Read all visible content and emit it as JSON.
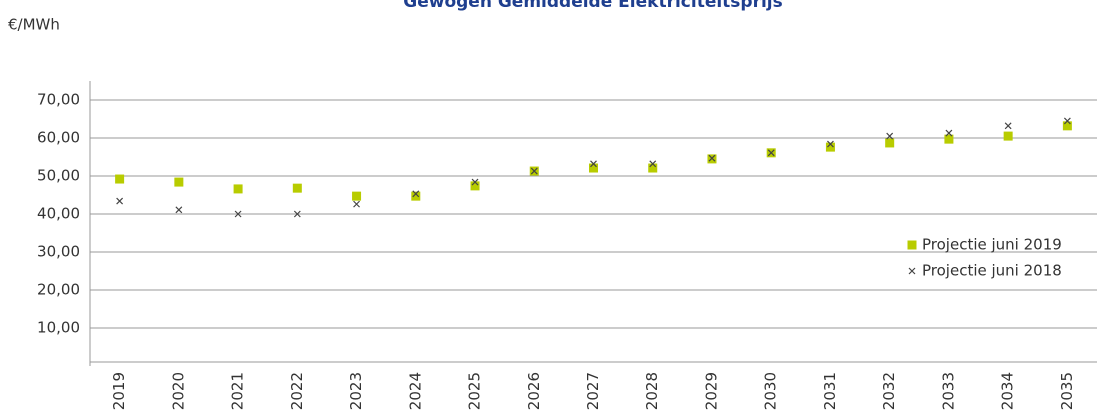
{
  "chart_data": {
    "type": "scatter",
    "title": "Gewogen Gemiddelde Elektriciteitsprijs",
    "y_label": "€/MWh",
    "categories": [
      "2019",
      "2020",
      "2021",
      "2022",
      "2023",
      "2024",
      "2025",
      "2026",
      "2027",
      "2028",
      "2029",
      "2030",
      "2031",
      "2032",
      "2033",
      "2034",
      "2035"
    ],
    "series": [
      {
        "name": "Projectie juni 2019",
        "color": "#b8cc00",
        "marker": "square",
        "values": [
          49.2,
          48.4,
          46.6,
          46.8,
          44.7,
          44.7,
          47.4,
          51.3,
          52.1,
          52.1,
          54.5,
          56.1,
          57.6,
          58.7,
          59.7,
          60.5,
          63.2
        ]
      },
      {
        "name": "Projectie juni 2018",
        "color": "#444444",
        "marker": "x",
        "values": [
          43.4,
          41.1,
          40.0,
          40.0,
          42.6,
          45.3,
          48.4,
          51.3,
          53.2,
          53.2,
          54.7,
          56.1,
          58.4,
          60.5,
          61.3,
          63.2,
          64.5
        ]
      }
    ],
    "ylim": [
      0,
      75
    ],
    "yticks": [
      {
        "value": 10,
        "label": "10,00"
      },
      {
        "value": 20,
        "label": "20,00"
      },
      {
        "value": 30,
        "label": "30,00"
      },
      {
        "value": 40,
        "label": "40,00"
      },
      {
        "value": 50,
        "label": "50,00"
      },
      {
        "value": 60,
        "label": "60,00"
      },
      {
        "value": 70,
        "label": "70,00"
      }
    ],
    "grid": true,
    "legend": "right"
  }
}
